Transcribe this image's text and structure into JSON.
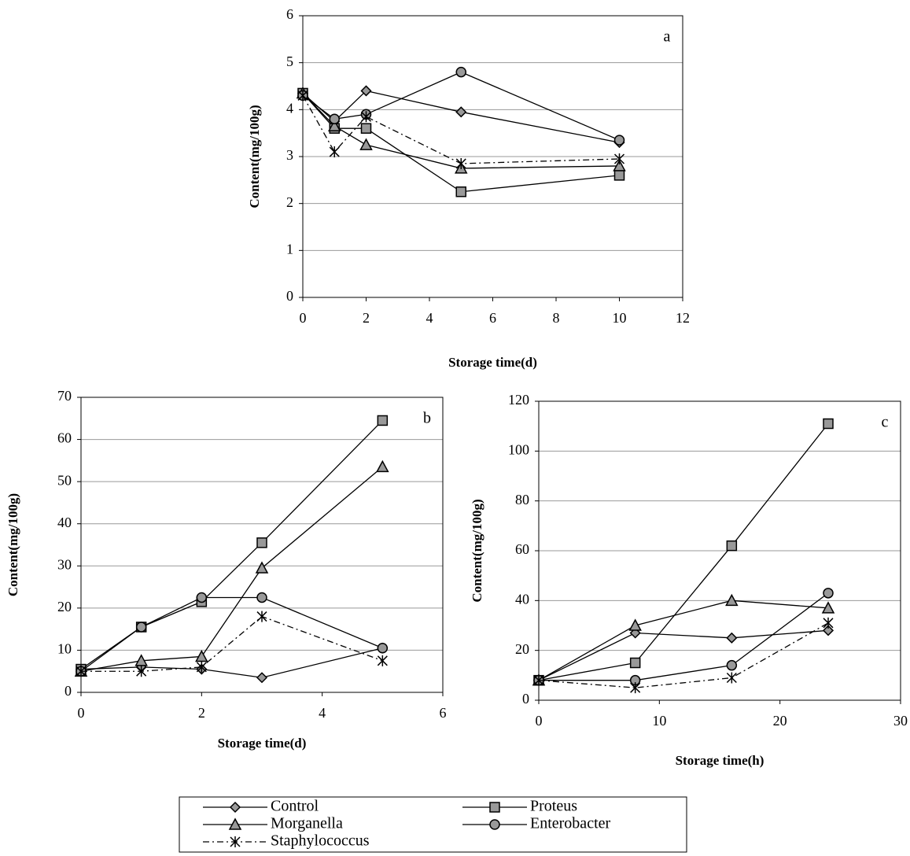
{
  "chart_data": [
    {
      "type": "line",
      "annotation": "a",
      "xlabel": "Storage time(d)",
      "ylabel": "Content(mg/100g)",
      "x": [
        0,
        1,
        2,
        5,
        10
      ],
      "xlim": [
        0,
        12
      ],
      "xticks": [
        0,
        2,
        4,
        6,
        8,
        10,
        12
      ],
      "ylim": [
        0,
        6
      ],
      "yticks": [
        0,
        1,
        2,
        3,
        4,
        5,
        6
      ],
      "grid": true,
      "series": [
        {
          "name": "Control",
          "marker": "diamond",
          "linestyle": "solid",
          "color": "#000000",
          "values": [
            4.35,
            3.75,
            4.4,
            3.95,
            3.3
          ]
        },
        {
          "name": "Proteus",
          "marker": "square",
          "linestyle": "solid",
          "color": "#000000",
          "values": [
            4.35,
            3.6,
            3.6,
            2.25,
            2.6
          ]
        },
        {
          "name": "Morganella",
          "marker": "triangle",
          "linestyle": "solid",
          "color": "#000000",
          "values": [
            4.35,
            3.65,
            3.25,
            2.75,
            2.8
          ]
        },
        {
          "name": "Enterobacter",
          "marker": "circle",
          "linestyle": "solid",
          "color": "#000000",
          "values": [
            4.3,
            3.8,
            3.9,
            4.8,
            3.35
          ]
        },
        {
          "name": "Staphylococcus",
          "marker": "star",
          "linestyle": "dashdot",
          "color": "#000000",
          "values": [
            4.3,
            3.1,
            3.85,
            2.85,
            2.95
          ]
        }
      ]
    },
    {
      "type": "line",
      "annotation": "b",
      "xlabel": "Storage time(d)",
      "ylabel": "Content(mg/100g)",
      "x": [
        0,
        1,
        2,
        3,
        5
      ],
      "xlim": [
        0,
        6
      ],
      "xticks": [
        0,
        2,
        4,
        6
      ],
      "ylim": [
        0,
        70
      ],
      "yticks": [
        0,
        10,
        20,
        30,
        40,
        50,
        60,
        70
      ],
      "grid": true,
      "series": [
        {
          "marker": "diamond",
          "linestyle": "solid",
          "color": "#000000",
          "values": [
            5.5,
            6,
            5.5,
            3.5,
            10.5
          ]
        },
        {
          "marker": "square",
          "linestyle": "solid",
          "color": "#000000",
          "values": [
            5.5,
            15.5,
            21.5,
            35.5,
            64.5
          ]
        },
        {
          "marker": "triangle",
          "linestyle": "solid",
          "color": "#000000",
          "values": [
            5,
            7.5,
            8.5,
            29.5,
            53.5
          ]
        },
        {
          "marker": "circle",
          "linestyle": "solid",
          "color": "#000000",
          "values": [
            5,
            15.5,
            22.5,
            22.5,
            10.5
          ]
        },
        {
          "marker": "star",
          "linestyle": "dashdot",
          "color": "#000000",
          "values": [
            5,
            5,
            6,
            18,
            7.5
          ]
        }
      ]
    },
    {
      "type": "line",
      "annotation": "c",
      "xlabel": "Storage time(h)",
      "ylabel": "Content(mg/100g)",
      "x": [
        0,
        8,
        16,
        24
      ],
      "xlim": [
        0,
        30
      ],
      "xticks": [
        0,
        10,
        20,
        30
      ],
      "ylim": [
        0,
        120
      ],
      "yticks": [
        0,
        20,
        40,
        60,
        80,
        100,
        120
      ],
      "grid": true,
      "series": [
        {
          "marker": "diamond",
          "linestyle": "solid",
          "color": "#000000",
          "values": [
            8,
            27,
            25,
            28
          ]
        },
        {
          "marker": "square",
          "linestyle": "solid",
          "color": "#000000",
          "values": [
            8,
            15,
            62,
            111
          ]
        },
        {
          "marker": "triangle",
          "linestyle": "solid",
          "color": "#000000",
          "values": [
            8,
            30,
            40,
            37
          ]
        },
        {
          "marker": "circle",
          "linestyle": "solid",
          "color": "#000000",
          "values": [
            8,
            8,
            14,
            43
          ]
        },
        {
          "marker": "star",
          "linestyle": "dashdot",
          "color": "#000000",
          "values": [
            8,
            5,
            9,
            31
          ]
        }
      ]
    }
  ]
}
